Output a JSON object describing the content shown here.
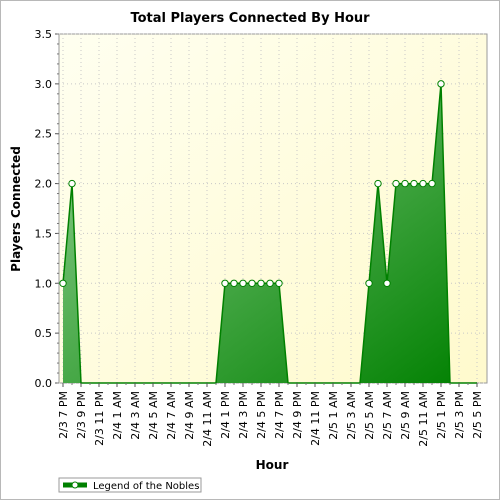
{
  "chart_data": {
    "type": "area",
    "title": "Total Players Connected By Hour",
    "xlabel": "Hour",
    "ylabel": "Players Connected",
    "ylim": [
      0,
      3.5
    ],
    "yticks": [
      "0.0",
      "0.5",
      "1.0",
      "1.5",
      "2.0",
      "2.5",
      "3.0",
      "3.5"
    ],
    "grid": true,
    "legend_position": "bottom-left",
    "categories": [
      "2/3 7 PM",
      "2/3 8 PM",
      "2/3 9 PM",
      "2/3 10 PM",
      "2/3 11 PM",
      "2/4 12 AM",
      "2/4 1 AM",
      "2/4 2 AM",
      "2/4 3 AM",
      "2/4 4 AM",
      "2/4 5 AM",
      "2/4 6 AM",
      "2/4 7 AM",
      "2/4 8 AM",
      "2/4 9 AM",
      "2/4 10 AM",
      "2/4 11 AM",
      "2/4 12 PM",
      "2/4 1 PM",
      "2/4 2 PM",
      "2/4 3 PM",
      "2/4 4 PM",
      "2/4 5 PM",
      "2/4 6 PM",
      "2/4 7 PM",
      "2/4 8 PM",
      "2/4 9 PM",
      "2/4 10 PM",
      "2/4 11 PM",
      "2/5 12 AM",
      "2/5 1 AM",
      "2/5 2 AM",
      "2/5 3 AM",
      "2/5 4 AM",
      "2/5 5 AM",
      "2/5 6 AM",
      "2/5 7 AM",
      "2/5 8 AM",
      "2/5 9 AM",
      "2/5 10 AM",
      "2/5 11 AM",
      "2/5 12 PM",
      "2/5 1 PM",
      "2/5 2 PM",
      "2/5 3 PM",
      "2/5 4 PM",
      "2/5 5 PM"
    ],
    "tick_labels": [
      "2/3 7 PM",
      "2/3 9 PM",
      "2/3 11 PM",
      "2/4 1 AM",
      "2/4 3 AM",
      "2/4 5 AM",
      "2/4 7 AM",
      "2/4 9 AM",
      "2/4 11 AM",
      "2/4 1 PM",
      "2/4 3 PM",
      "2/4 5 PM",
      "2/4 7 PM",
      "2/4 9 PM",
      "2/4 11 PM",
      "2/5 1 AM",
      "2/5 3 AM",
      "2/5 5 AM",
      "2/5 7 AM",
      "2/5 9 AM",
      "2/5 11 AM",
      "2/5 1 PM",
      "2/5 3 PM",
      "2/5 5 PM"
    ],
    "series": [
      {
        "name": "Legend of the Nobles",
        "values": [
          1,
          2,
          0,
          0,
          0,
          0,
          0,
          0,
          0,
          0,
          0,
          0,
          0,
          0,
          0,
          0,
          0,
          0,
          1,
          1,
          1,
          1,
          1,
          1,
          1,
          0,
          0,
          0,
          0,
          0,
          0,
          0,
          0,
          0,
          1,
          2,
          1,
          2,
          2,
          2,
          2,
          2,
          3,
          0,
          0,
          0,
          0
        ],
        "color": "#008000"
      }
    ],
    "colors": {
      "plot_background_top": "#fffff0",
      "plot_background_bottom": "#fffacd",
      "line": "#008000",
      "fill_dark": "#008000",
      "fill_light": "#8fd08f"
    }
  }
}
